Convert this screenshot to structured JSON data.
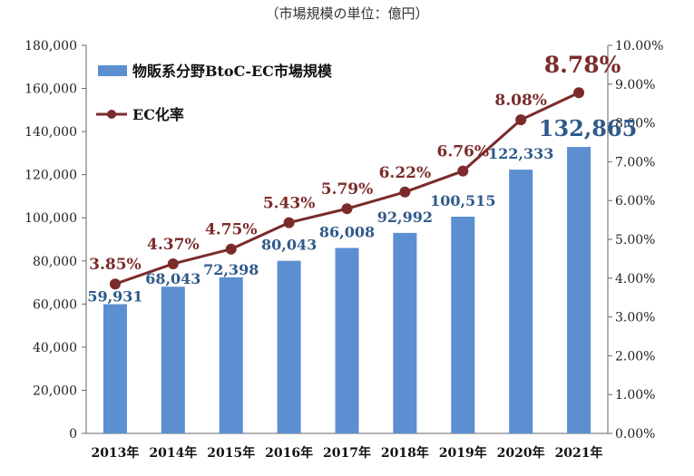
{
  "unit_note": "（市場規模の単位：億円）",
  "chart_data": {
    "type": "bar",
    "categories": [
      "2013年",
      "2014年",
      "2015年",
      "2016年",
      "2017年",
      "2018年",
      "2019年",
      "2020年",
      "2021年"
    ],
    "series": [
      {
        "name": "物販系分野BtoC-EC市場規模",
        "type": "bar",
        "axis": "left",
        "values": [
          59931,
          68043,
          72398,
          80043,
          86008,
          92992,
          100515,
          122333,
          132865
        ],
        "labels": [
          "59,931",
          "68,043",
          "72,398",
          "80,043",
          "86,008",
          "92,992",
          "100,515",
          "122,333",
          "132,865"
        ],
        "color": "#5b8fd1"
      },
      {
        "name": "EC化率",
        "type": "line",
        "axis": "right",
        "values": [
          3.85,
          4.37,
          4.75,
          5.43,
          5.79,
          6.22,
          6.76,
          8.08,
          8.78
        ],
        "labels": [
          "3.85%",
          "4.37%",
          "4.75%",
          "5.43%",
          "5.79%",
          "6.22%",
          "6.76%",
          "8.08%",
          "8.78%"
        ],
        "color": "#7b2b2b"
      }
    ],
    "ylim_left": [
      0,
      180000
    ],
    "ylim_right": [
      0,
      10
    ],
    "yticks_left": [
      "0",
      "20,000",
      "40,000",
      "60,000",
      "80,000",
      "100,000",
      "120,000",
      "140,000",
      "160,000",
      "180,000"
    ],
    "yticks_right": [
      "0.00%",
      "1.00%",
      "2.00%",
      "3.00%",
      "4.00%",
      "5.00%",
      "6.00%",
      "7.00%",
      "8.00%",
      "9.00%",
      "10.00%"
    ],
    "legend": "top-left",
    "grid": false
  }
}
